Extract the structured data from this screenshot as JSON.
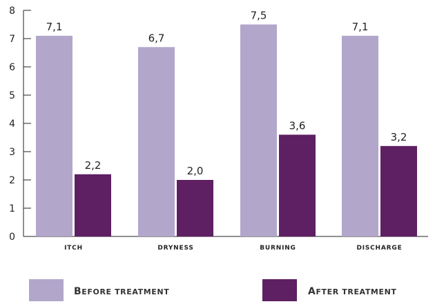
{
  "chart_data": {
    "type": "bar",
    "categories": [
      "ITCH",
      "DRYNESS",
      "BURNING",
      "DISCHARGE"
    ],
    "series": [
      {
        "name": "Before treatment",
        "color": "#b3a6cb",
        "values": [
          7.1,
          6.7,
          7.5,
          7.1
        ],
        "labels": [
          "7,1",
          "6,7",
          "7,5",
          "7,1"
        ]
      },
      {
        "name": "After treatment",
        "color": "#5e1f63",
        "values": [
          2.2,
          2.0,
          3.6,
          3.2
        ],
        "labels": [
          "2,2",
          "2,0",
          "3,6",
          "3,2"
        ]
      }
    ],
    "ylim": [
      0,
      8
    ],
    "yticks": [
      0,
      1,
      2,
      3,
      4,
      5,
      6,
      7,
      8
    ],
    "grid": false,
    "legend_placement": "bottom"
  }
}
